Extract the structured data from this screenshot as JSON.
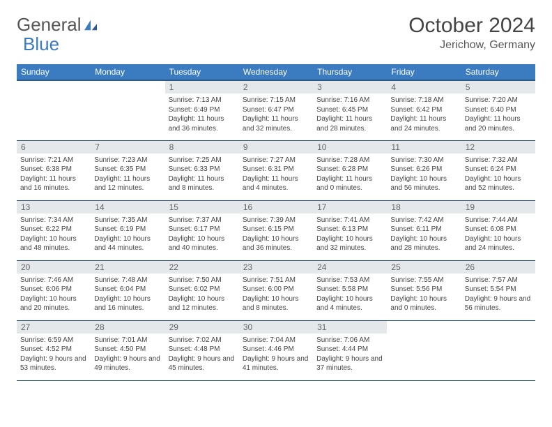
{
  "logo": {
    "text1": "General",
    "text2": "Blue"
  },
  "title": "October 2024",
  "location": "Jerichow, Germany",
  "colors": {
    "header_bg": "#3b7bbf",
    "header_border": "#2c5a8c",
    "daynum_bg": "#e4e8eb",
    "text": "#444"
  },
  "weekdays": [
    "Sunday",
    "Monday",
    "Tuesday",
    "Wednesday",
    "Thursday",
    "Friday",
    "Saturday"
  ],
  "weeks": [
    [
      null,
      null,
      {
        "n": "1",
        "sr": "7:13 AM",
        "ss": "6:49 PM",
        "dl": "11 hours and 36 minutes."
      },
      {
        "n": "2",
        "sr": "7:15 AM",
        "ss": "6:47 PM",
        "dl": "11 hours and 32 minutes."
      },
      {
        "n": "3",
        "sr": "7:16 AM",
        "ss": "6:45 PM",
        "dl": "11 hours and 28 minutes."
      },
      {
        "n": "4",
        "sr": "7:18 AM",
        "ss": "6:42 PM",
        "dl": "11 hours and 24 minutes."
      },
      {
        "n": "5",
        "sr": "7:20 AM",
        "ss": "6:40 PM",
        "dl": "11 hours and 20 minutes."
      }
    ],
    [
      {
        "n": "6",
        "sr": "7:21 AM",
        "ss": "6:38 PM",
        "dl": "11 hours and 16 minutes."
      },
      {
        "n": "7",
        "sr": "7:23 AM",
        "ss": "6:35 PM",
        "dl": "11 hours and 12 minutes."
      },
      {
        "n": "8",
        "sr": "7:25 AM",
        "ss": "6:33 PM",
        "dl": "11 hours and 8 minutes."
      },
      {
        "n": "9",
        "sr": "7:27 AM",
        "ss": "6:31 PM",
        "dl": "11 hours and 4 minutes."
      },
      {
        "n": "10",
        "sr": "7:28 AM",
        "ss": "6:28 PM",
        "dl": "11 hours and 0 minutes."
      },
      {
        "n": "11",
        "sr": "7:30 AM",
        "ss": "6:26 PM",
        "dl": "10 hours and 56 minutes."
      },
      {
        "n": "12",
        "sr": "7:32 AM",
        "ss": "6:24 PM",
        "dl": "10 hours and 52 minutes."
      }
    ],
    [
      {
        "n": "13",
        "sr": "7:34 AM",
        "ss": "6:22 PM",
        "dl": "10 hours and 48 minutes."
      },
      {
        "n": "14",
        "sr": "7:35 AM",
        "ss": "6:19 PM",
        "dl": "10 hours and 44 minutes."
      },
      {
        "n": "15",
        "sr": "7:37 AM",
        "ss": "6:17 PM",
        "dl": "10 hours and 40 minutes."
      },
      {
        "n": "16",
        "sr": "7:39 AM",
        "ss": "6:15 PM",
        "dl": "10 hours and 36 minutes."
      },
      {
        "n": "17",
        "sr": "7:41 AM",
        "ss": "6:13 PM",
        "dl": "10 hours and 32 minutes."
      },
      {
        "n": "18",
        "sr": "7:42 AM",
        "ss": "6:11 PM",
        "dl": "10 hours and 28 minutes."
      },
      {
        "n": "19",
        "sr": "7:44 AM",
        "ss": "6:08 PM",
        "dl": "10 hours and 24 minutes."
      }
    ],
    [
      {
        "n": "20",
        "sr": "7:46 AM",
        "ss": "6:06 PM",
        "dl": "10 hours and 20 minutes."
      },
      {
        "n": "21",
        "sr": "7:48 AM",
        "ss": "6:04 PM",
        "dl": "10 hours and 16 minutes."
      },
      {
        "n": "22",
        "sr": "7:50 AM",
        "ss": "6:02 PM",
        "dl": "10 hours and 12 minutes."
      },
      {
        "n": "23",
        "sr": "7:51 AM",
        "ss": "6:00 PM",
        "dl": "10 hours and 8 minutes."
      },
      {
        "n": "24",
        "sr": "7:53 AM",
        "ss": "5:58 PM",
        "dl": "10 hours and 4 minutes."
      },
      {
        "n": "25",
        "sr": "7:55 AM",
        "ss": "5:56 PM",
        "dl": "10 hours and 0 minutes."
      },
      {
        "n": "26",
        "sr": "7:57 AM",
        "ss": "5:54 PM",
        "dl": "9 hours and 56 minutes."
      }
    ],
    [
      {
        "n": "27",
        "sr": "6:59 AM",
        "ss": "4:52 PM",
        "dl": "9 hours and 53 minutes."
      },
      {
        "n": "28",
        "sr": "7:01 AM",
        "ss": "4:50 PM",
        "dl": "9 hours and 49 minutes."
      },
      {
        "n": "29",
        "sr": "7:02 AM",
        "ss": "4:48 PM",
        "dl": "9 hours and 45 minutes."
      },
      {
        "n": "30",
        "sr": "7:04 AM",
        "ss": "4:46 PM",
        "dl": "9 hours and 41 minutes."
      },
      {
        "n": "31",
        "sr": "7:06 AM",
        "ss": "4:44 PM",
        "dl": "9 hours and 37 minutes."
      },
      null,
      null
    ]
  ],
  "labels": {
    "sunrise": "Sunrise: ",
    "sunset": "Sunset: ",
    "daylight": "Daylight: "
  }
}
